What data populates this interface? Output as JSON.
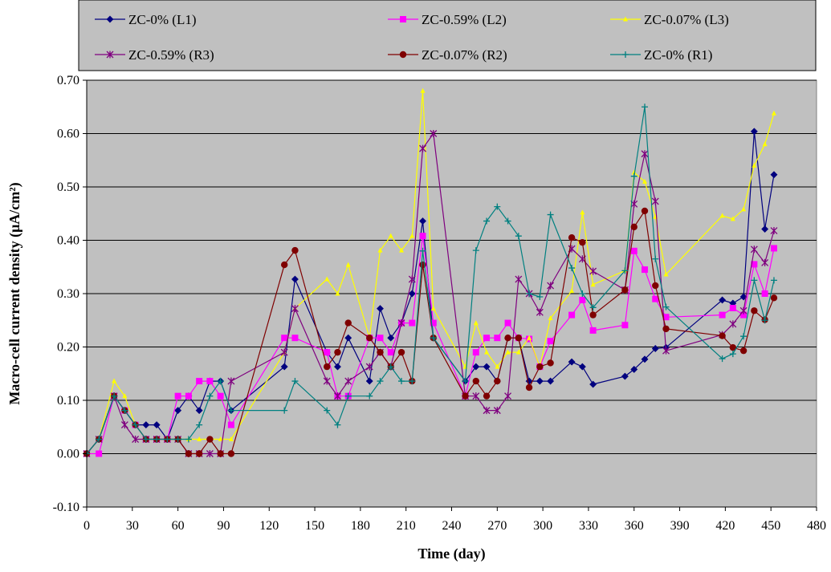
{
  "chart_data": {
    "type": "line",
    "title": "",
    "xlabel": "Time (day)",
    "ylabel": "Macro-cell current density (μA/cm²)",
    "xlim": [
      0,
      480
    ],
    "ylim": [
      -0.1,
      0.7
    ],
    "xticks": [
      0,
      30,
      60,
      90,
      120,
      150,
      180,
      210,
      240,
      270,
      300,
      330,
      360,
      390,
      420,
      450,
      480
    ],
    "yticks": [
      -0.1,
      0.0,
      0.1,
      0.2,
      0.3,
      0.4,
      0.5,
      0.6,
      0.7
    ],
    "grid": true,
    "plot_background": "#c0c0c0",
    "legend_placement": "top",
    "series": [
      {
        "name": "ZC-0% (L1)",
        "color": "#00007f",
        "marker": "diamond",
        "x": [
          0,
          8,
          18,
          25,
          32,
          39,
          46,
          53,
          60,
          67,
          74,
          81,
          88,
          95,
          130,
          137,
          158,
          165,
          172,
          186,
          193,
          200,
          207,
          214,
          221,
          228,
          249,
          256,
          263,
          270,
          277,
          284,
          291,
          298,
          305,
          319,
          326,
          333,
          354,
          360,
          367,
          374,
          381,
          418,
          425,
          432,
          439,
          446,
          452
        ],
        "y": [
          0.0,
          0.027,
          0.108,
          0.081,
          0.054,
          0.054,
          0.054,
          0.027,
          0.081,
          0.108,
          0.081,
          0.136,
          0.136,
          0.081,
          0.163,
          0.327,
          0.19,
          0.163,
          0.217,
          0.136,
          0.272,
          0.217,
          0.245,
          0.3,
          0.436,
          0.217,
          0.136,
          0.163,
          0.163,
          0.136,
          0.217,
          0.217,
          0.136,
          0.136,
          0.136,
          0.172,
          0.163,
          0.13,
          0.145,
          0.158,
          0.177,
          0.197,
          0.199,
          0.288,
          0.282,
          0.294,
          0.604,
          0.421,
          0.523
        ]
      },
      {
        "name": "ZC-0.59% (L2)",
        "color": "#ff00ff",
        "marker": "square",
        "x": [
          0,
          8,
          18,
          25,
          32,
          39,
          46,
          53,
          60,
          67,
          74,
          81,
          88,
          95,
          130,
          137,
          158,
          165,
          172,
          186,
          193,
          200,
          207,
          214,
          221,
          228,
          249,
          256,
          263,
          270,
          277,
          284,
          291,
          298,
          305,
          319,
          326,
          333,
          354,
          360,
          367,
          374,
          381,
          418,
          425,
          432,
          439,
          446,
          452
        ],
        "y": [
          0.0,
          0.0,
          0.108,
          0.081,
          0.054,
          0.027,
          0.027,
          0.027,
          0.108,
          0.108,
          0.136,
          0.136,
          0.108,
          0.054,
          0.217,
          0.217,
          0.19,
          0.108,
          0.108,
          0.217,
          0.217,
          0.19,
          0.245,
          0.245,
          0.408,
          0.245,
          0.108,
          0.19,
          0.217,
          0.217,
          0.245,
          0.217,
          0.215,
          0.163,
          0.211,
          0.26,
          0.288,
          0.231,
          0.241,
          0.38,
          0.345,
          0.29,
          0.256,
          0.26,
          0.273,
          0.26,
          0.355,
          0.3,
          0.385
        ]
      },
      {
        "name": "ZC-0.07% (L3)",
        "color": "#ffff00",
        "marker": "triangle",
        "x": [
          0,
          8,
          18,
          25,
          32,
          39,
          46,
          53,
          60,
          67,
          74,
          81,
          88,
          95,
          130,
          137,
          158,
          165,
          172,
          186,
          193,
          200,
          207,
          214,
          221,
          228,
          249,
          256,
          263,
          270,
          277,
          284,
          291,
          298,
          305,
          319,
          326,
          333,
          354,
          360,
          367,
          374,
          381,
          418,
          425,
          432,
          439,
          446,
          452
        ],
        "y": [
          0.0,
          0.027,
          0.136,
          0.108,
          0.054,
          0.027,
          0.027,
          0.027,
          0.027,
          0.027,
          0.027,
          0.027,
          0.027,
          0.027,
          0.19,
          0.272,
          0.327,
          0.3,
          0.354,
          0.217,
          0.381,
          0.408,
          0.381,
          0.408,
          0.68,
          0.272,
          0.163,
          0.245,
          0.19,
          0.163,
          0.19,
          0.19,
          0.217,
          0.163,
          0.254,
          0.305,
          0.452,
          0.317,
          0.343,
          0.527,
          0.51,
          0.444,
          0.336,
          0.446,
          0.44,
          0.458,
          0.54,
          0.58,
          0.638
        ]
      },
      {
        "name": "ZC-0.59% (R3)",
        "color": "#7f007f",
        "marker": "star",
        "x": [
          0,
          8,
          18,
          25,
          32,
          39,
          46,
          53,
          60,
          67,
          74,
          81,
          88,
          95,
          130,
          137,
          158,
          165,
          172,
          186,
          193,
          200,
          207,
          214,
          221,
          228,
          249,
          256,
          263,
          270,
          277,
          284,
          291,
          298,
          305,
          319,
          326,
          333,
          354,
          360,
          367,
          374,
          381,
          418,
          425,
          432,
          439,
          446,
          452
        ],
        "y": [
          0.0,
          0.027,
          0.108,
          0.054,
          0.027,
          0.027,
          0.027,
          0.027,
          0.027,
          0.0,
          0.0,
          0.0,
          0.0,
          0.136,
          0.19,
          0.272,
          0.136,
          0.108,
          0.136,
          0.163,
          0.19,
          0.163,
          0.245,
          0.327,
          0.572,
          0.6,
          0.108,
          0.108,
          0.081,
          0.081,
          0.108,
          0.327,
          0.3,
          0.265,
          0.315,
          0.384,
          0.365,
          0.342,
          0.307,
          0.468,
          0.562,
          0.473,
          0.193,
          0.223,
          0.243,
          0.268,
          0.383,
          0.358,
          0.418
        ]
      },
      {
        "name": "ZC-0.07% (R2)",
        "color": "#7f0000",
        "marker": "circle",
        "x": [
          0,
          8,
          18,
          25,
          32,
          39,
          46,
          53,
          60,
          67,
          74,
          81,
          88,
          95,
          130,
          137,
          158,
          165,
          172,
          186,
          193,
          200,
          207,
          214,
          221,
          228,
          249,
          256,
          263,
          270,
          277,
          284,
          291,
          298,
          305,
          319,
          326,
          333,
          354,
          360,
          367,
          374,
          381,
          418,
          425,
          432,
          439,
          446,
          452
        ],
        "y": [
          0.0,
          0.027,
          0.108,
          0.081,
          0.054,
          0.027,
          0.027,
          0.027,
          0.027,
          0.0,
          0.0,
          0.027,
          0.0,
          0.0,
          0.354,
          0.381,
          0.163,
          0.19,
          0.245,
          0.217,
          0.19,
          0.163,
          0.19,
          0.136,
          0.354,
          0.217,
          0.108,
          0.136,
          0.108,
          0.136,
          0.217,
          0.217,
          0.124,
          0.163,
          0.17,
          0.405,
          0.396,
          0.26,
          0.307,
          0.425,
          0.455,
          0.315,
          0.234,
          0.221,
          0.199,
          0.193,
          0.268,
          0.251,
          0.292
        ]
      },
      {
        "name": "ZC-0% (R1)",
        "color": "#008080",
        "marker": "plus",
        "x": [
          0,
          8,
          18,
          25,
          32,
          39,
          46,
          53,
          60,
          67,
          74,
          81,
          88,
          95,
          130,
          137,
          158,
          165,
          172,
          186,
          193,
          200,
          207,
          214,
          221,
          228,
          249,
          256,
          263,
          270,
          277,
          284,
          291,
          298,
          305,
          319,
          326,
          333,
          354,
          360,
          367,
          374,
          381,
          418,
          425,
          432,
          439,
          446,
          452
        ],
        "y": [
          0.0,
          0.027,
          0.108,
          0.081,
          0.054,
          0.027,
          0.027,
          0.027,
          0.027,
          0.027,
          0.054,
          0.108,
          0.136,
          0.081,
          0.081,
          0.136,
          0.081,
          0.054,
          0.108,
          0.108,
          0.136,
          0.163,
          0.136,
          0.136,
          0.38,
          0.217,
          0.136,
          0.381,
          0.436,
          0.463,
          0.436,
          0.408,
          0.3,
          0.294,
          0.448,
          0.348,
          0.3,
          0.274,
          0.343,
          0.52,
          0.65,
          0.365,
          0.275,
          0.178,
          0.187,
          0.22,
          0.325,
          0.25,
          0.325
        ]
      }
    ]
  }
}
